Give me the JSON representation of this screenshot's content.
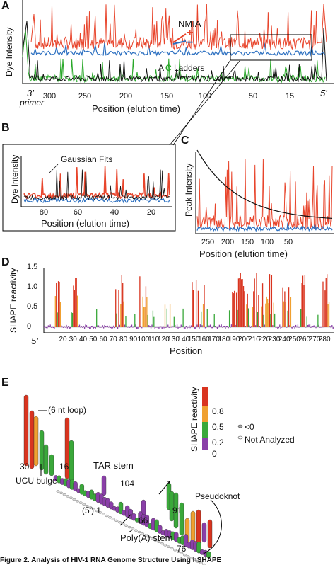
{
  "panels": {
    "A": {
      "letter": "A",
      "ylabel": "Dye Intensity",
      "xlabel": "Position (elution time)",
      "legend_title": "NMIA",
      "plus": "+",
      "minus": "−",
      "ladders_a": "A",
      "ladders_c": "C",
      "ladders_word": "Ladders",
      "primer_3": "3'",
      "primer_word": "primer",
      "end_5": "5'",
      "ticks": [
        "300",
        "250",
        "200",
        "150",
        "100",
        "50",
        "15"
      ]
    },
    "B": {
      "letter": "B",
      "ylabel": "Dye Intensity",
      "xlabel": "Position (elution time)",
      "annotation": "Gaussian Fits",
      "ticks": [
        "80",
        "60",
        "40",
        "20"
      ]
    },
    "C": {
      "letter": "C",
      "ylabel": "Peak Intensity",
      "xlabel": "Position (elution time)",
      "ticks": [
        "250",
        "200",
        "150",
        "100",
        "50"
      ]
    },
    "D": {
      "letter": "D",
      "ylabel": "SHAPE reactivity",
      "xlabel": "Position",
      "start": "5'",
      "yticks": [
        "1.5",
        "1.0",
        "0.5",
        "0"
      ],
      "xticks": [
        "20",
        "30",
        "40",
        "50",
        "60",
        "70",
        "80",
        "90",
        "100",
        "110",
        "120",
        "130",
        "140",
        "150",
        "160",
        "170",
        "180",
        "190",
        "200",
        "210",
        "220",
        "230",
        "240",
        "250",
        "260",
        "270",
        "280"
      ]
    },
    "E": {
      "letter": "E",
      "loop_label": "(6 nt loop)",
      "ucu_label": "UCU bulge",
      "tar_label": "TAR stem",
      "polya_label": "Poly(A) stem",
      "pseudoknot_label": "Pseudoknot",
      "num_30": "30",
      "num_16": "16",
      "num_104": "104",
      "num_66": "66",
      "num_91": "91",
      "num_76": "76",
      "five_prime_1": "(5') 1",
      "legend_title": "SHAPE reactivity",
      "legend_ticks": [
        "0.8",
        "0.5",
        "0.2",
        "0"
      ],
      "legend_lt0": "<0",
      "legend_na": "Not Analyzed",
      "colors": {
        "red": "#d9341f",
        "orange": "#f0a030",
        "green": "#3aa83a",
        "purple": "#8a3fa8"
      }
    }
  },
  "caption": "Figure 2. Analysis of HIV-1 RNA Genome Structure Using hSHAPE"
}
